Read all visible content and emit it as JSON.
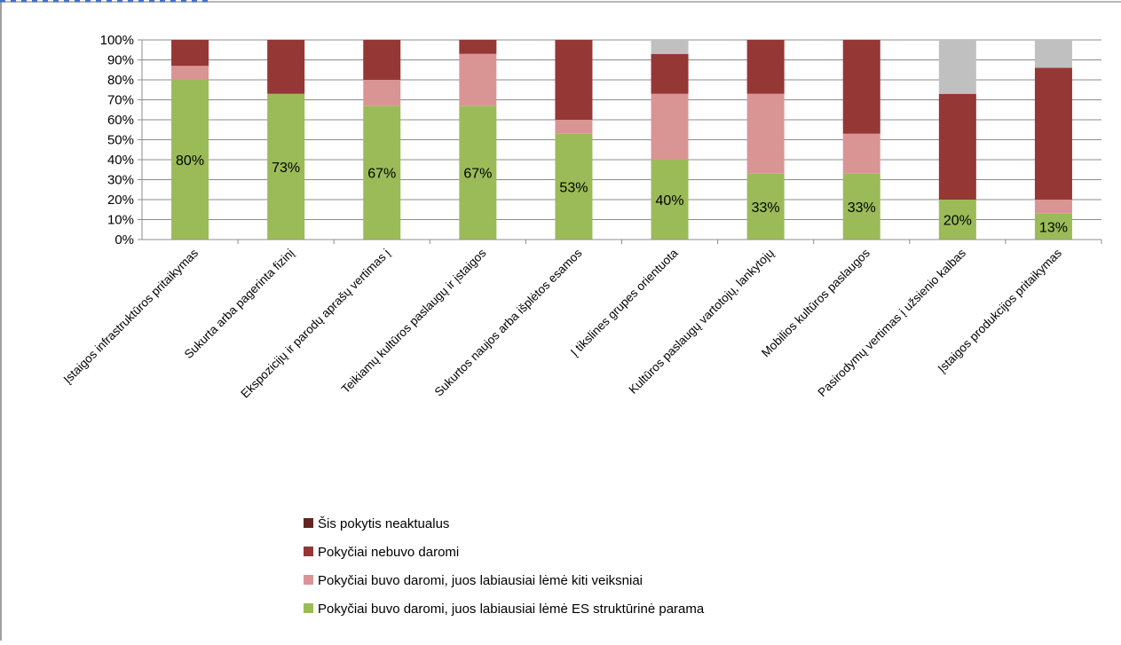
{
  "chart_data": {
    "type": "bar",
    "stacked": true,
    "title": "",
    "xlabel": "",
    "ylabel": "",
    "ylim": [
      0,
      100
    ],
    "y_ticks": [
      "0%",
      "10%",
      "20%",
      "30%",
      "40%",
      "50%",
      "60%",
      "70%",
      "80%",
      "90%",
      "100%"
    ],
    "grid": true,
    "legend_position": "bottom",
    "categories": [
      "Įstaigos infrastruktūros pritaikymas",
      "Sukurta arba pagerinta fizinį",
      "Ekspozicijų ir parodų aprašų vertimas į",
      "Teikiamų kultūros paslaugų ir įstaigos",
      "Sukurtos naujos arba išplėtos esamos",
      "Į tikslines grupes  orientuota",
      "Kultūros paslaugų vartotojų, lankytojų",
      "Mobilios kultūros paslaugos",
      "Pasirodymų vertimas į užsienio kalbas",
      "Įstaigos produkcijos pritaikymas"
    ],
    "data_labels": [
      "80%",
      "73%",
      "67%",
      "67%",
      "53%",
      "40%",
      "33%",
      "33%",
      "20%",
      "13%"
    ],
    "series": [
      {
        "name": "Pokyčiai buvo daromi, juos labiausiai lėmė ES struktūrinė parama",
        "color": "#9bbb59",
        "values": [
          80,
          73,
          67,
          67,
          53,
          40,
          33,
          33,
          20,
          13
        ]
      },
      {
        "name": "Pokyčiai buvo daromi, juos labiausiai lėmė kiti veiksniai",
        "color": "#d99594",
        "values": [
          7,
          0,
          13,
          26,
          7,
          33,
          40,
          20,
          0,
          7
        ]
      },
      {
        "name": "Pokyčiai nebuvo daromi",
        "color": "#953735",
        "values": [
          13,
          27,
          20,
          7,
          40,
          20,
          27,
          47,
          53,
          66
        ]
      },
      {
        "name": "Šis pokytis neaktualus",
        "color": "#c0c0c0",
        "values": [
          0,
          0,
          0,
          0,
          0,
          7,
          0,
          0,
          27,
          14
        ]
      }
    ],
    "legend": [
      {
        "label": "Šis pokytis neaktualus",
        "color": "#632523"
      },
      {
        "label": "Pokyčiai nebuvo daromi",
        "color": "#953735"
      },
      {
        "label": "Pokyčiai buvo daromi, juos labiausiai lėmė kiti veiksniai",
        "color": "#d99594"
      },
      {
        "label": "Pokyčiai buvo daromi, juos labiausiai lėmė ES struktūrinė parama",
        "color": "#9bbb59"
      }
    ]
  }
}
